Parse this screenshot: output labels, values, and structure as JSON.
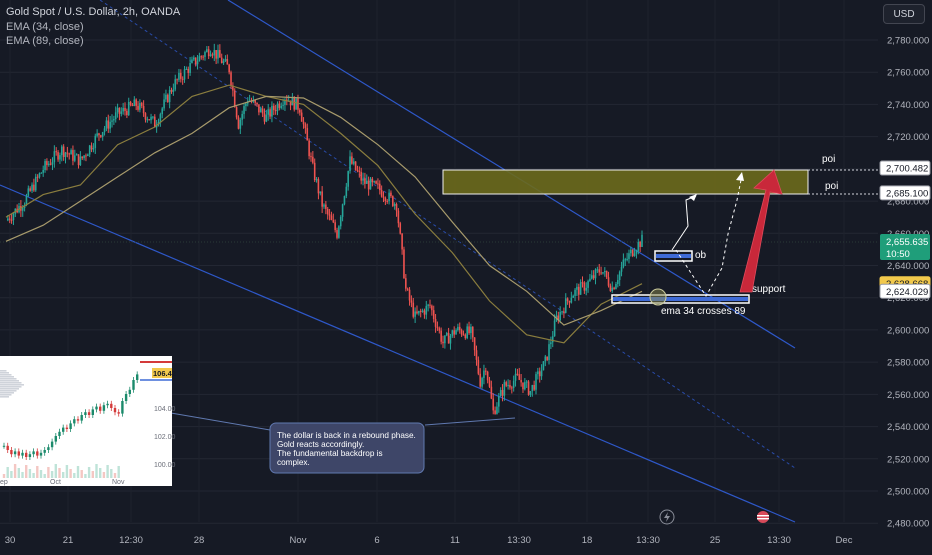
{
  "header": {
    "title": "Gold Spot / U.S. Dollar, 2h, OANDA",
    "ema1": "EMA (34, close)",
    "ema2": "EMA (89, close)",
    "currency": "USD"
  },
  "colors": {
    "background": "#161a25",
    "up": "#26a69a",
    "down": "#ef5350",
    "ema34": "#8a7d3e",
    "ema89": "#a89b6c",
    "channel": "#2e58c9",
    "poi_zone": "#6b6a1c",
    "arrow_red": "#c9283a",
    "price_tag": "#1f9e7a",
    "ema_tag": "#f2c94c"
  },
  "chart_data": {
    "type": "candlestick",
    "title": "Gold Spot / U.S. Dollar, 2h, OANDA",
    "ylim": [
      2480,
      2790
    ],
    "y_ticks": [
      2480,
      2500,
      2520,
      2540,
      2560,
      2580,
      2600,
      2620,
      2640,
      2660,
      2680,
      2700,
      2720,
      2740,
      2760,
      2780
    ],
    "y_tick_labels": [
      "2,480.000",
      "2,500.000",
      "2,520.000",
      "2,540.000",
      "2,560.000",
      "2,580.000",
      "2,600.000",
      "2,620.000",
      "2,640.000",
      "2,660.000",
      "2,680.000",
      "2,700.000",
      "2,720.000",
      "2,740.000",
      "2,760.000",
      "2,780.000"
    ],
    "x_tick_labels": [
      "30",
      "21",
      "12:30",
      "28",
      "Nov",
      "6",
      "11",
      "13:30",
      "18",
      "13:30",
      "25",
      "13:30",
      "Dec"
    ],
    "price_path": [
      [
        0,
        2668
      ],
      [
        10,
        2680
      ],
      [
        20,
        2700
      ],
      [
        30,
        2712
      ],
      [
        40,
        2705
      ],
      [
        50,
        2722
      ],
      [
        60,
        2734
      ],
      [
        70,
        2740
      ],
      [
        80,
        2728
      ],
      [
        90,
        2752
      ],
      [
        100,
        2765
      ],
      [
        110,
        2775
      ],
      [
        120,
        2762
      ],
      [
        125,
        2728
      ],
      [
        130,
        2744
      ],
      [
        140,
        2732
      ],
      [
        150,
        2745
      ],
      [
        158,
        2738
      ],
      [
        165,
        2700
      ],
      [
        170,
        2678
      ],
      [
        178,
        2660
      ],
      [
        185,
        2705
      ],
      [
        192,
        2692
      ],
      [
        200,
        2688
      ],
      [
        210,
        2678
      ],
      [
        215,
        2625
      ],
      [
        220,
        2608
      ],
      [
        228,
        2615
      ],
      [
        235,
        2592
      ],
      [
        242,
        2600
      ],
      [
        250,
        2598
      ],
      [
        255,
        2568
      ],
      [
        258,
        2578
      ],
      [
        262,
        2549
      ],
      [
        268,
        2565
      ],
      [
        275,
        2570
      ],
      [
        282,
        2562
      ],
      [
        290,
        2580
      ],
      [
        296,
        2607
      ],
      [
        304,
        2622
      ],
      [
        312,
        2628
      ],
      [
        320,
        2638
      ],
      [
        326,
        2626
      ],
      [
        332,
        2641
      ],
      [
        338,
        2651
      ],
      [
        342,
        2655.6
      ]
    ],
    "ema34": [
      [
        0,
        2670
      ],
      [
        20,
        2684
      ],
      [
        40,
        2690
      ],
      [
        60,
        2715
      ],
      [
        80,
        2726
      ],
      [
        100,
        2745
      ],
      [
        120,
        2752
      ],
      [
        140,
        2745
      ],
      [
        160,
        2740
      ],
      [
        180,
        2722
      ],
      [
        200,
        2702
      ],
      [
        220,
        2672
      ],
      [
        240,
        2648
      ],
      [
        260,
        2618
      ],
      [
        280,
        2597
      ],
      [
        300,
        2592
      ],
      [
        320,
        2616
      ],
      [
        342,
        2628.7
      ]
    ],
    "ema89": [
      [
        0,
        2655
      ],
      [
        20,
        2665
      ],
      [
        40,
        2680
      ],
      [
        60,
        2695
      ],
      [
        80,
        2710
      ],
      [
        100,
        2722
      ],
      [
        120,
        2738
      ],
      [
        140,
        2745
      ],
      [
        160,
        2744
      ],
      [
        180,
        2732
      ],
      [
        200,
        2715
      ],
      [
        220,
        2695
      ],
      [
        240,
        2667
      ],
      [
        260,
        2640
      ],
      [
        280,
        2624
      ],
      [
        300,
        2603
      ],
      [
        320,
        2612
      ],
      [
        342,
        2624.0
      ]
    ],
    "last_price": {
      "value": "2,655.635",
      "countdown": "10:50"
    },
    "price_tags": [
      "2,700.482",
      "2,685.100",
      "2,628.668",
      "2,624.029"
    ],
    "annotations": {
      "poi_top": "poi",
      "poi_bottom": "poi",
      "ob": "ob",
      "support": "support",
      "ema_cross": "ema 34 crosses 89",
      "note_lines": [
        "The dollar is back in a rebound phase.",
        "Gold reacts accordingly.",
        "The fundamental backdrop is",
        "complex."
      ]
    },
    "inset": {
      "y_tick_labels": [
        "104.00",
        "102.00",
        "100.00"
      ],
      "x_tick_labels": [
        "ep",
        "Oct",
        "Nov"
      ],
      "price_label": "106.42"
    }
  }
}
